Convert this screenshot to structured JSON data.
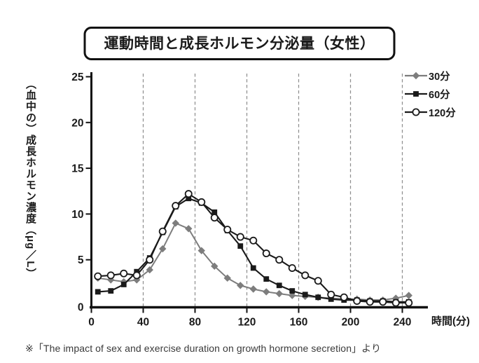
{
  "title": "運動時間と成長ホルモン分泌量（女性）",
  "source_note": "※「The impact of sex and exercise duration on growth hormone secretion」より",
  "colors": {
    "series_30min": "#7d7d7d",
    "series_60min": "#1a1a1a",
    "series_120min": "#1a1a1a",
    "marker_open_fill": "#ffffff",
    "gridline": "#8f8f8f",
    "axis": "#111111",
    "text": "#1a1a1a"
  },
  "chart_data": {
    "type": "line",
    "title": "運動時間と成長ホルモン分泌量（女性）",
    "xlabel": "時間(分)",
    "ylabel": "（血中の）成長ホルモン濃度（μg／L）",
    "xlim": [
      0,
      260
    ],
    "ylim": [
      0,
      25
    ],
    "x_ticks": [
      0,
      40,
      80,
      120,
      160,
      200,
      240
    ],
    "y_ticks": [
      0,
      5,
      10,
      15,
      20,
      25
    ],
    "grid": "vertical-dashed",
    "legend_position": "top-right",
    "x": [
      5,
      15,
      25,
      35,
      45,
      55,
      65,
      75,
      85,
      95,
      105,
      115,
      125,
      135,
      145,
      155,
      165,
      175,
      185,
      195,
      205,
      215,
      225,
      235,
      245
    ],
    "series": [
      {
        "name": "30分",
        "marker": "diamond",
        "color": "#7d7d7d",
        "values": [
          3.0,
          2.8,
          2.6,
          2.8,
          3.9,
          6.2,
          9.0,
          8.4,
          6.0,
          4.3,
          3.0,
          2.2,
          1.8,
          1.5,
          1.3,
          1.1,
          1.0,
          0.9,
          0.8,
          0.7,
          0.7,
          0.6,
          0.6,
          0.8,
          1.1
        ]
      },
      {
        "name": "60分",
        "marker": "square",
        "color": "#1a1a1a",
        "values": [
          1.5,
          1.6,
          2.3,
          3.7,
          5.2,
          8.0,
          10.8,
          11.7,
          11.2,
          10.2,
          8.2,
          6.5,
          4.1,
          2.9,
          2.2,
          1.6,
          1.2,
          0.9,
          0.7,
          0.6,
          0.6,
          0.5,
          0.5,
          0.4,
          0.4
        ]
      },
      {
        "name": "120分",
        "marker": "circle-open",
        "color": "#1a1a1a",
        "values": [
          3.2,
          3.3,
          3.5,
          3.3,
          5.0,
          8.1,
          10.9,
          12.2,
          11.3,
          9.6,
          8.3,
          7.5,
          7.1,
          5.7,
          5.0,
          4.1,
          3.3,
          2.7,
          1.2,
          0.9,
          0.5,
          0.4,
          0.4,
          0.3,
          0.3
        ]
      }
    ]
  },
  "legend": [
    {
      "label": "30分"
    },
    {
      "label": "60分"
    },
    {
      "label": "120分"
    }
  ]
}
